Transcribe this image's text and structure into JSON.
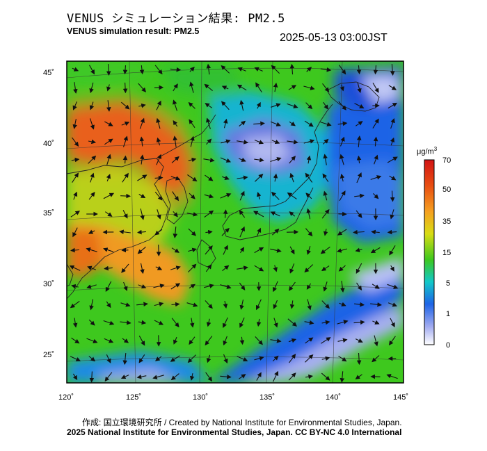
{
  "header": {
    "title_jp": "VENUS シミュレーション結果: PM2.5",
    "title_en": "VENUS simulation result: PM2.5",
    "timestamp": "2025-05-13 03:00JST"
  },
  "map": {
    "lon_range": [
      120,
      145
    ],
    "lat_range": [
      23,
      46
    ],
    "lon_ticks": [
      "120˚",
      "125˚",
      "130˚",
      "135˚",
      "140˚",
      "145˚"
    ],
    "lat_ticks": [
      "45˚",
      "40˚",
      "35˚",
      "30˚",
      "25˚"
    ],
    "wind_vectors": true,
    "region": "East Asia / Japan"
  },
  "colorbar": {
    "unit_base": "μg/m",
    "unit_exp": "3",
    "ticks": [
      "70",
      "50",
      "35",
      "15",
      "5",
      "1",
      "0"
    ],
    "colors": [
      "#d21414",
      "#e84e12",
      "#f5a020",
      "#d8dc14",
      "#3ec81e",
      "#12c8c8",
      "#1e64e6",
      "#a0aaf0",
      "#ffffff"
    ]
  },
  "footer": {
    "credit_jp": "作成: 国立環境研究所 / Created by National Institute for Environmental Studies, Japan.",
    "copyright": "2025 National Institute for Environmental Studies, Japan. CC BY-NC 4.0 International"
  }
}
